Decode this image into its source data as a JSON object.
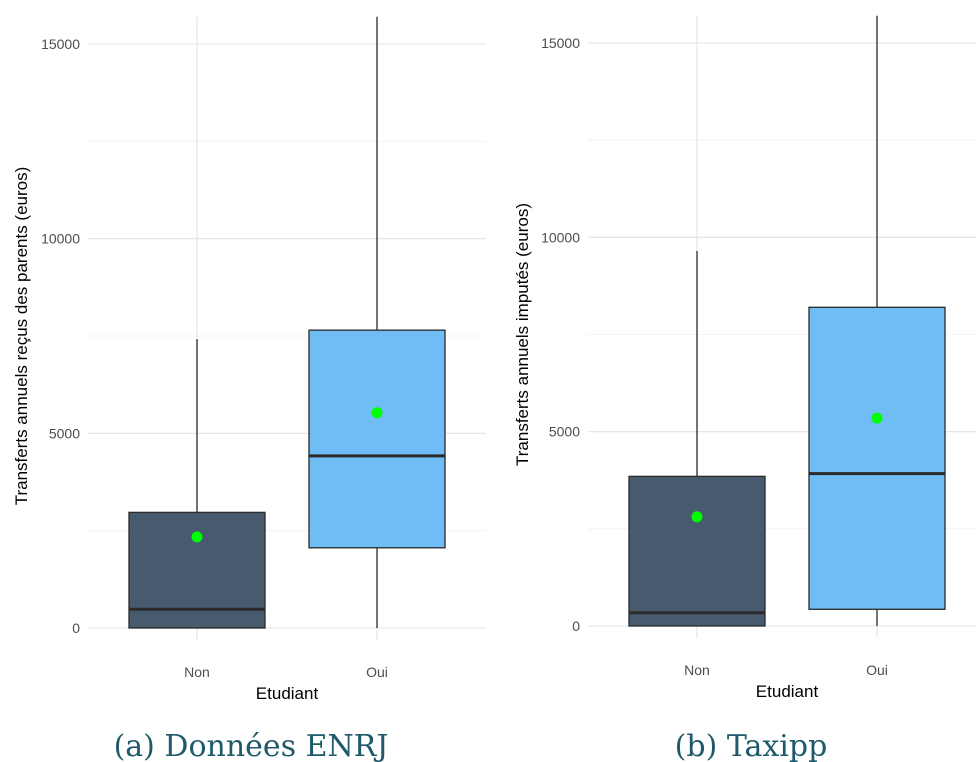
{
  "chart_data": [
    {
      "type": "boxplot",
      "caption": "(a) Données ENRJ",
      "xlabel": "Etudiant",
      "ylabel": "Transferts annuels reçus des parents (euros)",
      "categories": [
        "Non",
        "Oui"
      ],
      "y_ticks": [
        "0",
        "5000",
        "10000",
        "15000"
      ],
      "ylim": [
        0,
        15700
      ],
      "grid": true,
      "boxes": [
        {
          "category": "Non",
          "min": 0,
          "q1": 0,
          "median": 480,
          "q3": 2970,
          "max": 7420,
          "mean": 2340,
          "color": "#475a6e"
        },
        {
          "category": "Oui",
          "min": 0,
          "q1": 2060,
          "median": 4420,
          "q3": 7650,
          "max": 15700,
          "mean": 5530,
          "color": "#70bcf5"
        }
      ],
      "mean_color": "#00ff00"
    },
    {
      "type": "boxplot",
      "caption": "(b) Taxipp",
      "xlabel": "Etudiant",
      "ylabel": "Transferts annuels imputés (euros)",
      "categories": [
        "Non",
        "Oui"
      ],
      "y_ticks": [
        "0",
        "5000",
        "10000",
        "15000"
      ],
      "ylim": [
        0,
        15700
      ],
      "grid": true,
      "boxes": [
        {
          "category": "Non",
          "min": 0,
          "q1": 0,
          "median": 340,
          "q3": 3850,
          "max": 9650,
          "mean": 2810,
          "color": "#475a6e"
        },
        {
          "category": "Oui",
          "min": 0,
          "q1": 430,
          "median": 3920,
          "q3": 8200,
          "max": 15700,
          "mean": 5350,
          "color": "#70bcf5"
        }
      ],
      "mean_color": "#00ff00"
    }
  ]
}
